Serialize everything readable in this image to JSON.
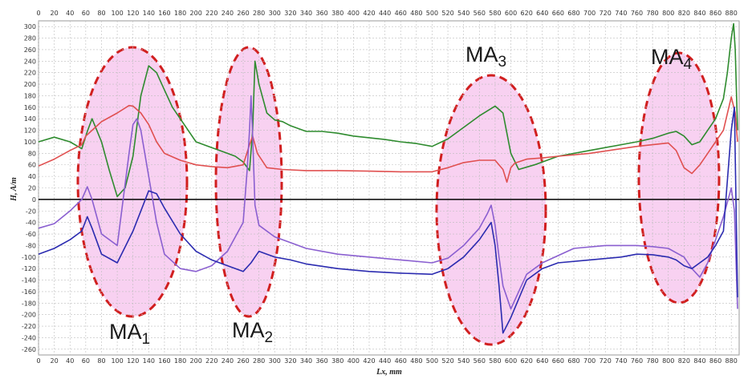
{
  "chart_data": {
    "type": "line",
    "xlabel": "Lx,  mm",
    "ylabel": "H,  A/m",
    "xlim": [
      0,
      890
    ],
    "ylim": [
      -270,
      310
    ],
    "x_ticks": [
      0,
      20,
      40,
      60,
      80,
      100,
      120,
      140,
      160,
      180,
      200,
      220,
      240,
      260,
      280,
      300,
      320,
      340,
      360,
      380,
      400,
      420,
      440,
      460,
      480,
      500,
      520,
      540,
      560,
      580,
      600,
      620,
      640,
      660,
      680,
      700,
      720,
      740,
      760,
      780,
      800,
      820,
      840,
      860,
      880
    ],
    "y_ticks": [
      300,
      280,
      260,
      240,
      220,
      200,
      180,
      160,
      140,
      120,
      100,
      80,
      60,
      40,
      20,
      0,
      -20,
      -40,
      -60,
      -80,
      -100,
      -120,
      -140,
      -160,
      -180,
      -200,
      -220,
      -240,
      -260
    ],
    "grid": true,
    "legend": "none",
    "series": [
      {
        "color": "#2e8b2e",
        "x": [
          0,
          20,
          40,
          55,
          62,
          68,
          80,
          90,
          100,
          110,
          120,
          130,
          140,
          150,
          160,
          170,
          180,
          190,
          200,
          210,
          220,
          230,
          240,
          250,
          260,
          268,
          272,
          275,
          280,
          290,
          300,
          310,
          320,
          340,
          360,
          380,
          400,
          420,
          440,
          460,
          480,
          500,
          520,
          540,
          560,
          580,
          590,
          600,
          610,
          630,
          660,
          700,
          740,
          760,
          780,
          800,
          810,
          820,
          830,
          840,
          850,
          860,
          870,
          875,
          880,
          883,
          885,
          888
        ],
        "y": [
          100,
          108,
          100,
          88,
          118,
          140,
          100,
          50,
          5,
          20,
          75,
          180,
          232,
          220,
          190,
          160,
          140,
          120,
          100,
          95,
          90,
          85,
          80,
          75,
          65,
          50,
          120,
          240,
          200,
          150,
          138,
          135,
          128,
          118,
          118,
          115,
          110,
          107,
          104,
          100,
          97,
          92,
          105,
          125,
          145,
          162,
          150,
          80,
          52,
          60,
          75,
          85,
          95,
          100,
          106,
          115,
          118,
          110,
          95,
          100,
          120,
          140,
          175,
          220,
          280,
          305,
          260,
          120
        ]
      },
      {
        "color": "#e05050",
        "x": [
          0,
          20,
          40,
          55,
          60,
          68,
          80,
          100,
          115,
          120,
          130,
          140,
          150,
          160,
          180,
          200,
          220,
          240,
          260,
          268,
          272,
          278,
          290,
          310,
          340,
          380,
          420,
          460,
          500,
          520,
          540,
          560,
          580,
          590,
          595,
          600,
          605,
          620,
          640,
          660,
          700,
          740,
          760,
          780,
          800,
          810,
          820,
          830,
          840,
          850,
          860,
          870,
          880,
          885,
          888
        ],
        "y": [
          58,
          70,
          85,
          95,
          110,
          120,
          135,
          150,
          163,
          162,
          150,
          130,
          100,
          80,
          68,
          60,
          57,
          55,
          60,
          95,
          110,
          80,
          55,
          52,
          50,
          50,
          49,
          48,
          48,
          55,
          64,
          68,
          68,
          52,
          30,
          55,
          63,
          70,
          72,
          75,
          80,
          88,
          92,
          95,
          98,
          85,
          55,
          45,
          60,
          80,
          100,
          120,
          178,
          150,
          100
        ]
      },
      {
        "color": "#8a5fd0",
        "x": [
          0,
          20,
          40,
          55,
          62,
          68,
          80,
          100,
          115,
          120,
          125,
          130,
          140,
          150,
          160,
          180,
          200,
          220,
          240,
          260,
          265,
          268,
          270,
          272,
          275,
          280,
          300,
          320,
          340,
          380,
          420,
          460,
          500,
          520,
          540,
          560,
          570,
          575,
          580,
          585,
          590,
          600,
          620,
          640,
          680,
          720,
          760,
          780,
          800,
          820,
          830,
          840,
          850,
          860,
          870,
          880,
          884,
          888
        ],
        "y": [
          -50,
          -42,
          -20,
          0,
          22,
          0,
          -60,
          -80,
          80,
          130,
          140,
          120,
          40,
          -40,
          -95,
          -120,
          -125,
          -115,
          -90,
          -40,
          50,
          120,
          180,
          110,
          -10,
          -45,
          -65,
          -75,
          -85,
          -95,
          -100,
          -105,
          -110,
          -102,
          -80,
          -50,
          -25,
          -10,
          -45,
          -100,
          -150,
          -190,
          -130,
          -110,
          -85,
          -80,
          -80,
          -82,
          -85,
          -100,
          -120,
          -135,
          -110,
          -70,
          -30,
          20,
          -20,
          -190
        ]
      },
      {
        "color": "#2b2bb0",
        "x": [
          0,
          20,
          40,
          55,
          62,
          68,
          80,
          100,
          120,
          130,
          140,
          150,
          160,
          180,
          200,
          220,
          240,
          260,
          270,
          275,
          280,
          290,
          300,
          320,
          340,
          380,
          420,
          460,
          500,
          520,
          540,
          560,
          575,
          580,
          585,
          590,
          600,
          620,
          640,
          660,
          700,
          740,
          760,
          780,
          800,
          810,
          820,
          830,
          840,
          850,
          860,
          870,
          880,
          884,
          888
        ],
        "y": [
          -95,
          -85,
          -70,
          -55,
          -30,
          -50,
          -95,
          -110,
          -55,
          -20,
          15,
          10,
          -15,
          -60,
          -90,
          -105,
          -115,
          -125,
          -110,
          -100,
          -90,
          -95,
          -100,
          -105,
          -112,
          -120,
          -125,
          -128,
          -130,
          -120,
          -100,
          -70,
          -40,
          -80,
          -150,
          -232,
          -205,
          -140,
          -120,
          -110,
          -105,
          -100,
          -95,
          -96,
          -100,
          -105,
          -115,
          -120,
          -110,
          -100,
          -80,
          -55,
          120,
          160,
          -170
        ]
      }
    ],
    "annotations": [
      {
        "label": "MA",
        "sub": "1"
      },
      {
        "label": "MA",
        "sub": "2"
      },
      {
        "label": "MA",
        "sub": "3"
      },
      {
        "label": "MA",
        "sub": "4"
      }
    ]
  }
}
